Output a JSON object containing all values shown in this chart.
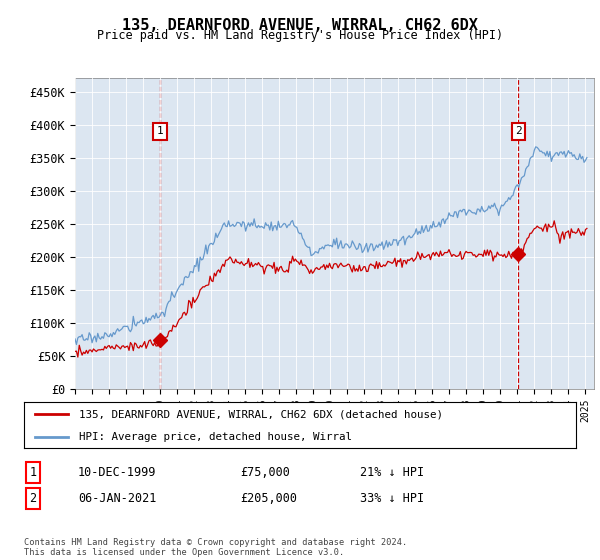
{
  "title": "135, DEARNFORD AVENUE, WIRRAL, CH62 6DX",
  "subtitle": "Price paid vs. HM Land Registry's House Price Index (HPI)",
  "ylim": [
    0,
    470000
  ],
  "yticks": [
    0,
    50000,
    100000,
    150000,
    200000,
    250000,
    300000,
    350000,
    400000,
    450000
  ],
  "plot_bg": "#dce6f1",
  "hpi_color": "#6699cc",
  "price_color": "#cc0000",
  "vline_color": "#cc0000",
  "purchase1_year": 2000.0,
  "purchase1_price": 75000,
  "purchase1_label": "1",
  "purchase1_date": "10-DEC-1999",
  "purchase1_pct": "21% ↓ HPI",
  "purchase2_year": 2021.05,
  "purchase2_price": 205000,
  "purchase2_label": "2",
  "purchase2_date": "06-JAN-2021",
  "purchase2_pct": "33% ↓ HPI",
  "legend_label_price": "135, DEARNFORD AVENUE, WIRRAL, CH62 6DX (detached house)",
  "legend_label_hpi": "HPI: Average price, detached house, Wirral",
  "footer": "Contains HM Land Registry data © Crown copyright and database right 2024.\nThis data is licensed under the Open Government Licence v3.0.",
  "xmin": 1995,
  "xmax": 2025.5
}
